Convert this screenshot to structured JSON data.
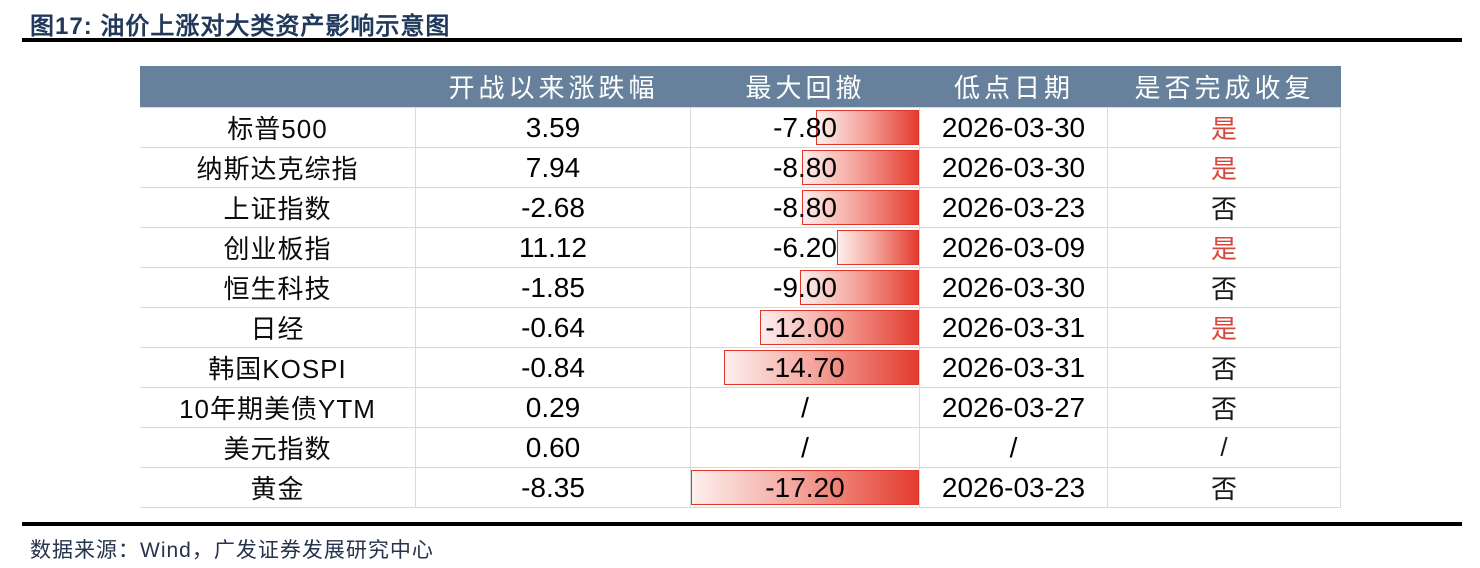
{
  "title": "图17: 油价上涨对大类资产影响示意图",
  "source": "数据来源：Wind，广发证券发展研究中心",
  "colors": {
    "title_navy": "#21395b",
    "header_bg": "#67809b",
    "header_text": "#ffffff",
    "grid_line": "#d9d9d9",
    "bar_red": "#e43b2e",
    "bar_light": "#fdefee",
    "bar_border": "#df382b",
    "yes_red": "#d8473b",
    "rule_black": "#000000"
  },
  "table": {
    "columns": [
      "",
      "开战以来涨跌幅",
      "最大回撤",
      "低点日期",
      "是否完成收复"
    ],
    "max_drawdown_scale": 17.2,
    "rows": [
      {
        "name": "标普500",
        "change": "3.59",
        "drawdown": "-7.80",
        "drawdown_value": 7.8,
        "low_date": "2026-03-30",
        "recovered": "是",
        "recovered_red": true
      },
      {
        "name": "纳斯达克综指",
        "change": "7.94",
        "drawdown": "-8.80",
        "drawdown_value": 8.8,
        "low_date": "2026-03-30",
        "recovered": "是",
        "recovered_red": true
      },
      {
        "name": "上证指数",
        "change": "-2.68",
        "drawdown": "-8.80",
        "drawdown_value": 8.8,
        "low_date": "2026-03-23",
        "recovered": "否",
        "recovered_red": false
      },
      {
        "name": "创业板指",
        "change": "11.12",
        "drawdown": "-6.20",
        "drawdown_value": 6.2,
        "low_date": "2026-03-09",
        "recovered": "是",
        "recovered_red": true
      },
      {
        "name": "恒生科技",
        "change": "-1.85",
        "drawdown": "-9.00",
        "drawdown_value": 9.0,
        "low_date": "2026-03-30",
        "recovered": "否",
        "recovered_red": false
      },
      {
        "name": "日经",
        "change": "-0.64",
        "drawdown": "-12.00",
        "drawdown_value": 12.0,
        "low_date": "2026-03-31",
        "recovered": "是",
        "recovered_red": true
      },
      {
        "name": "韩国KOSPI",
        "change": "-0.84",
        "drawdown": "-14.70",
        "drawdown_value": 14.7,
        "low_date": "2026-03-31",
        "recovered": "否",
        "recovered_red": false
      },
      {
        "name": "10年期美债YTM",
        "change": "0.29",
        "drawdown": "/",
        "drawdown_value": null,
        "low_date": "2026-03-27",
        "recovered": "否",
        "recovered_red": false
      },
      {
        "name": "美元指数",
        "change": "0.60",
        "drawdown": "/",
        "drawdown_value": null,
        "low_date": "/",
        "recovered": "/",
        "recovered_red": false
      },
      {
        "name": "黄金",
        "change": "-8.35",
        "drawdown": "-17.20",
        "drawdown_value": 17.2,
        "low_date": "2026-03-23",
        "recovered": "否",
        "recovered_red": false
      }
    ]
  }
}
